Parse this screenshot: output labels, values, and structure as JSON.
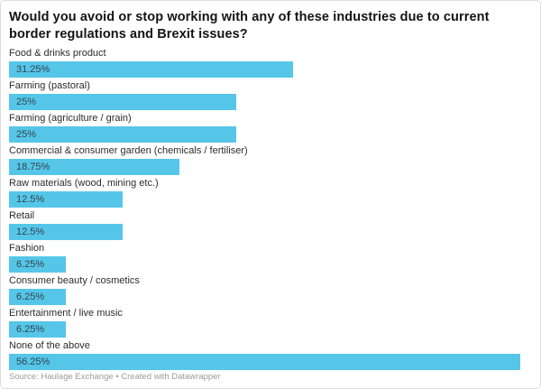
{
  "header": {
    "title": "Would you avoid or stop working with any of these industries due to current border regulations and Brexit issues?",
    "title_lines": [
      "Would you avoid or stop working with any of these industries due to current",
      "border regulations and Brexit issues?"
    ]
  },
  "chart_data": {
    "type": "bar",
    "orientation": "horizontal",
    "title": "Would you avoid or stop working with any of these industries due to current border regulations and Brexit issues?",
    "categories": [
      "Food & drinks product",
      "Farming (pastoral)",
      "Farming (agriculture / grain)",
      "Commercial & consumer garden (chemicals / fertiliser)",
      "Raw materials (wood, mining etc.)",
      "Retail",
      "Fashion",
      "Consumer beauty / cosmetics",
      "Entertainment / live music",
      "None of the above"
    ],
    "values": [
      31.25,
      25,
      25,
      18.75,
      12.5,
      12.5,
      6.25,
      6.25,
      6.25,
      56.25
    ],
    "value_labels": [
      "31.25%",
      "25%",
      "25%",
      "18.75%",
      "12.5%",
      "12.5%",
      "6.25%",
      "6.25%",
      "6.25%",
      "56.25%"
    ],
    "xlabel": "",
    "ylabel": "",
    "xlim": [
      0,
      56.25
    ],
    "grid": false,
    "legend_position": "none",
    "bar_color": "#55c6e8",
    "value_label_position": "inside-left"
  },
  "footer": {
    "source_text": "Source: Haulage Exchange • Created with Datawrapper"
  }
}
